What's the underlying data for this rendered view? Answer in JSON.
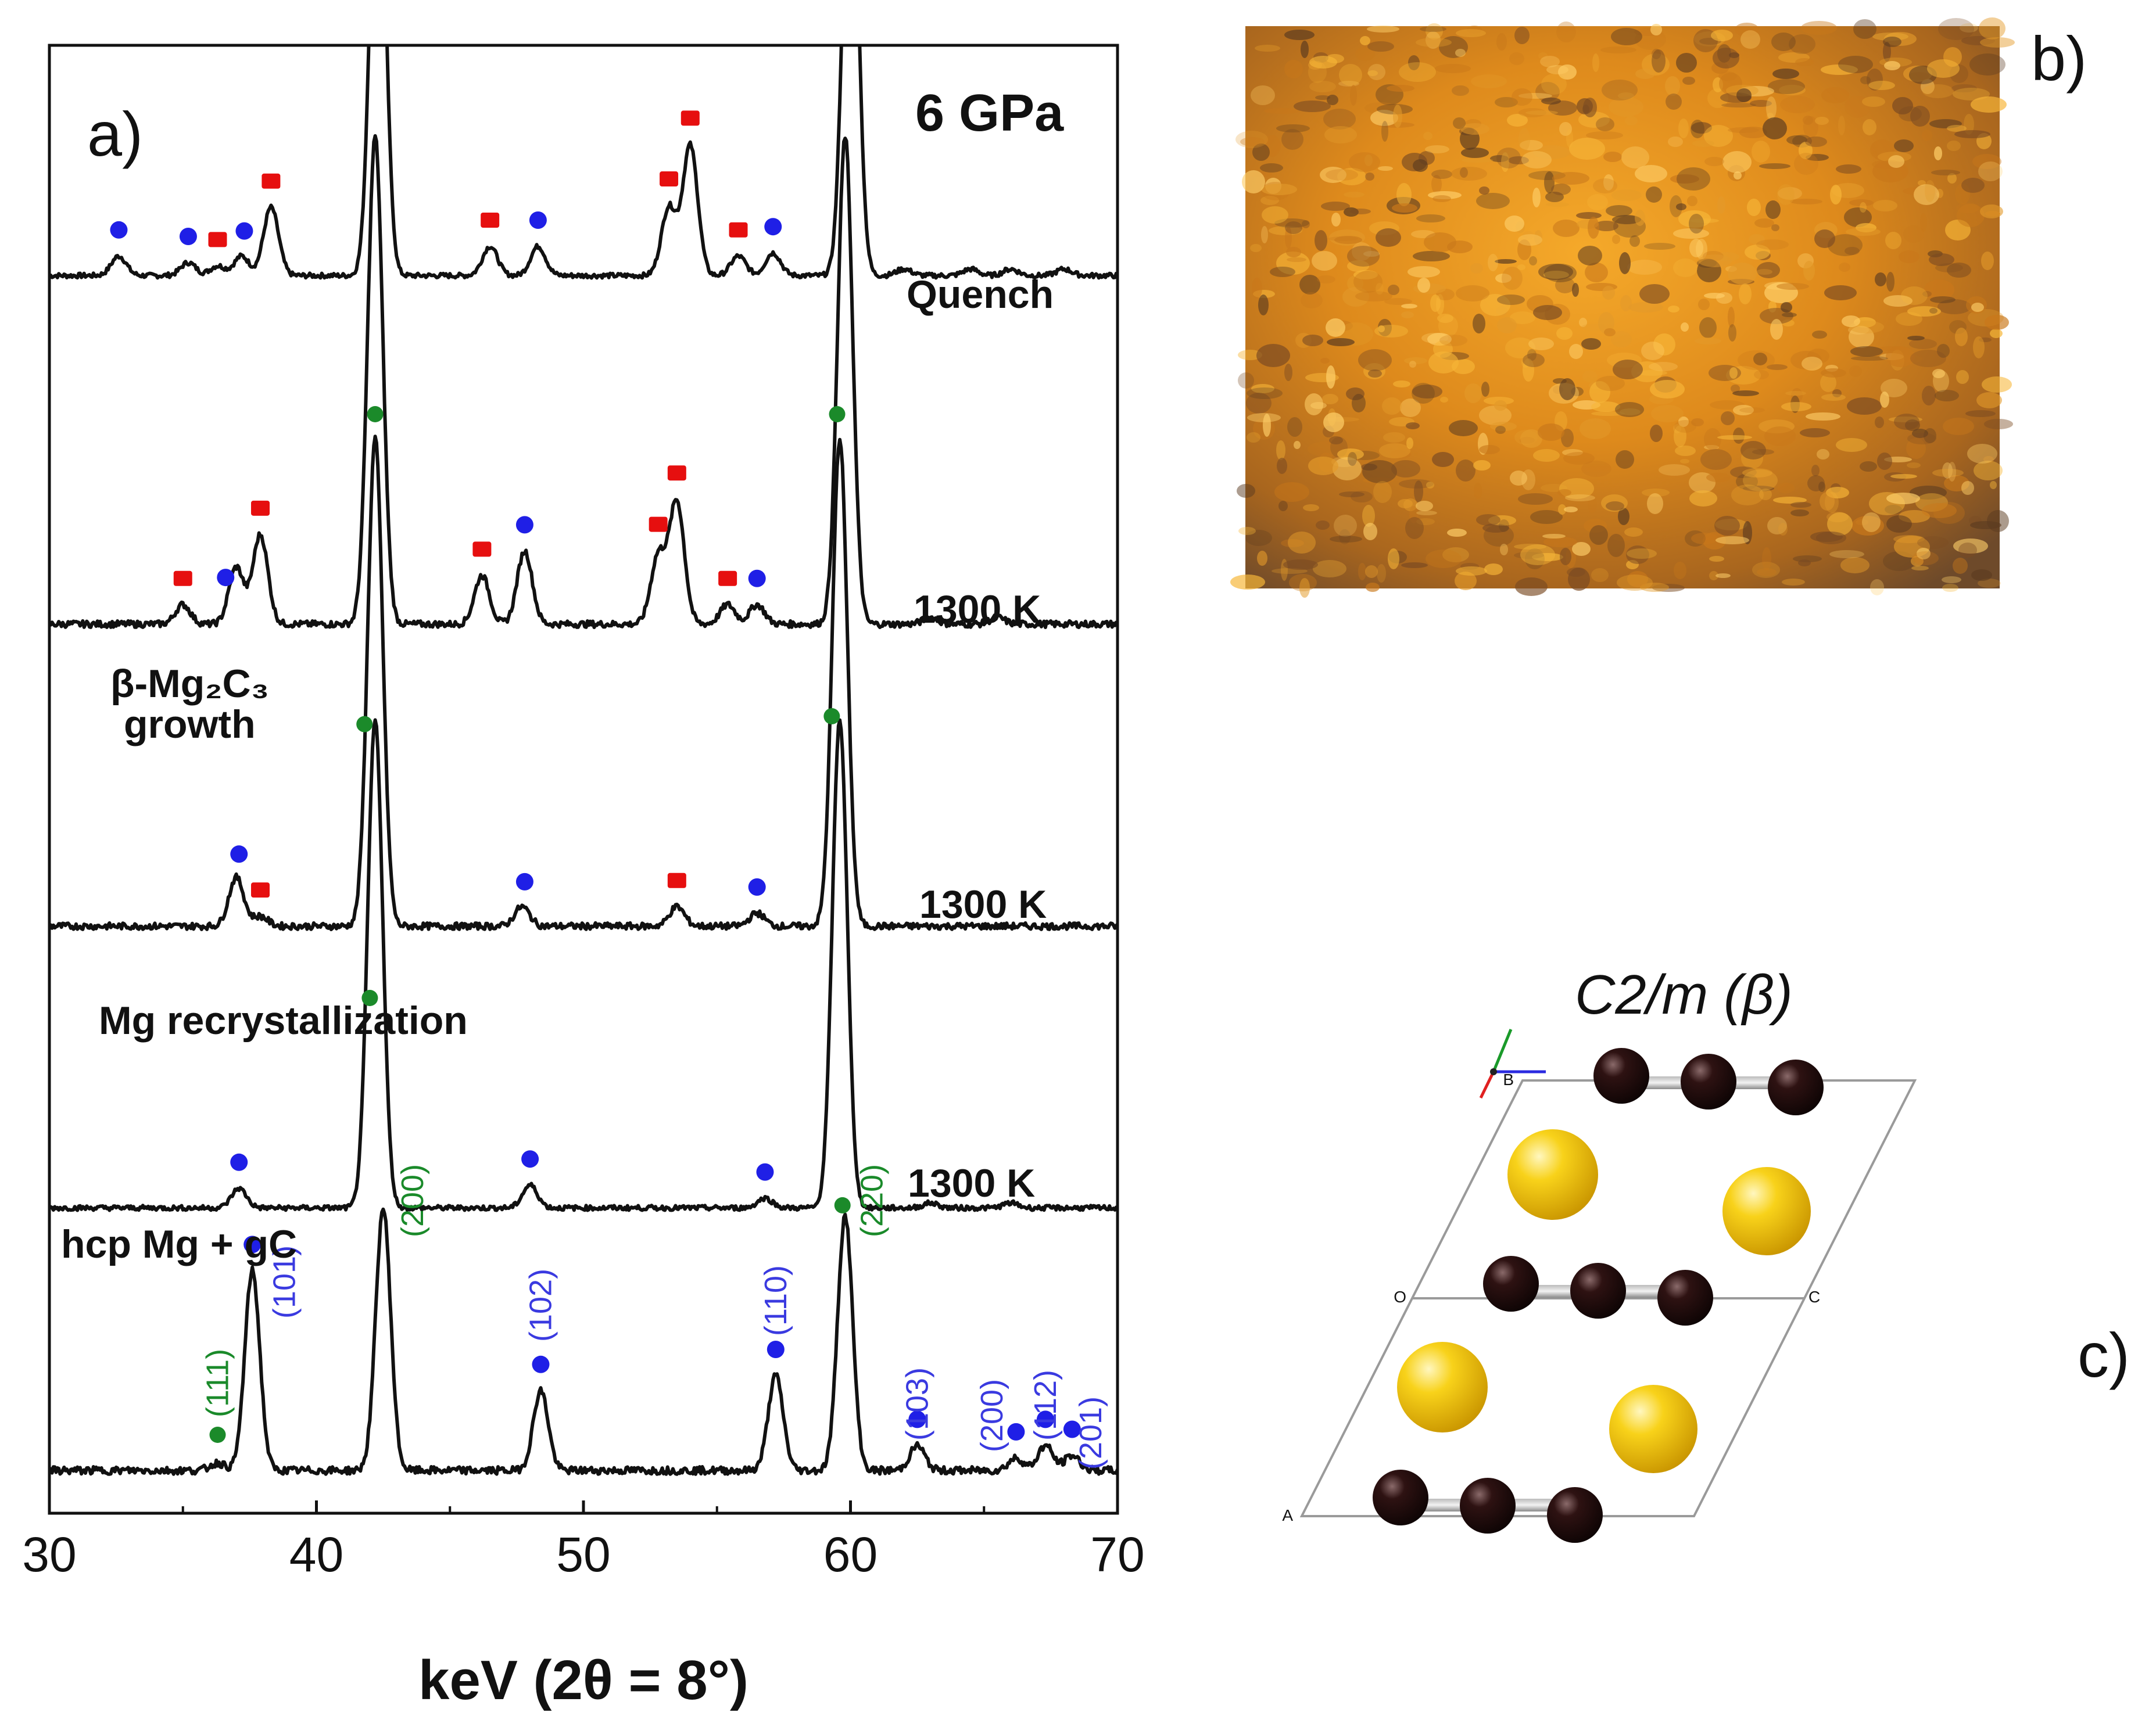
{
  "chart_data": {
    "type": "line",
    "panel_label": "a)",
    "annotation": "6 GPa",
    "xlabel": "keV (2θ = 8°)",
    "xlim": [
      30,
      70
    ],
    "xticks": [
      "30",
      "40",
      "50",
      "60",
      "70"
    ],
    "series": [
      {
        "name": "Quench",
        "offset": 4,
        "base": 0.02,
        "noise": 0.03,
        "peaks": [
          [
            32.6,
            0.12
          ],
          [
            35.2,
            0.08
          ],
          [
            36.3,
            0.06
          ],
          [
            37.2,
            0.12
          ],
          [
            38.3,
            0.42
          ],
          [
            42.3,
            3.0
          ],
          [
            46.5,
            0.18
          ],
          [
            48.3,
            0.18
          ],
          [
            53.2,
            0.42
          ],
          [
            54.0,
            0.8
          ],
          [
            55.8,
            0.12
          ],
          [
            57.1,
            0.14
          ],
          [
            60.0,
            3.0
          ],
          [
            62,
            0.04
          ],
          [
            64.5,
            0.04
          ],
          [
            66,
            0.04
          ],
          [
            68,
            0.04
          ]
        ],
        "blue_markers": [
          32.6,
          35.2,
          37.3,
          48.3,
          57.1
        ],
        "red_markers": [
          36.3,
          38.3,
          46.5,
          53.2,
          54.0,
          55.8
        ],
        "green_markers": []
      },
      {
        "name": "1300 K",
        "offset": 3,
        "base": 0.02,
        "noise": 0.04,
        "peaks": [
          [
            35.0,
            0.12
          ],
          [
            37.0,
            0.35
          ],
          [
            37.9,
            0.55
          ],
          [
            42.2,
            3.0
          ],
          [
            46.2,
            0.3
          ],
          [
            47.8,
            0.45
          ],
          [
            52.8,
            0.42
          ],
          [
            53.5,
            0.75
          ],
          [
            55.4,
            0.12
          ],
          [
            56.5,
            0.12
          ],
          [
            59.8,
            3.0
          ],
          [
            63,
            0.04
          ],
          [
            65.5,
            0.04
          ]
        ],
        "blue_markers": [
          36.6,
          47.8,
          56.5
        ],
        "red_markers": [
          35.0,
          37.9,
          46.2,
          52.8,
          53.5,
          55.4
        ],
        "green_markers": [
          42.2,
          59.5
        ]
      },
      {
        "name": "1300 K",
        "offset": 2,
        "base": 0.02,
        "noise": 0.04,
        "peaks": [
          [
            37.0,
            0.3
          ],
          [
            37.9,
            0.06
          ],
          [
            42.2,
            3.0
          ],
          [
            47.7,
            0.12
          ],
          [
            53.5,
            0.12
          ],
          [
            56.5,
            0.08
          ],
          [
            59.6,
            3.0
          ]
        ],
        "blue_markers": [
          37.1,
          47.8,
          56.5
        ],
        "red_markers": [
          37.9,
          53.5
        ],
        "green_markers": [
          41.8,
          59.3
        ]
      },
      {
        "name": "1300 K",
        "offset": 1,
        "base": 0.02,
        "noise": 0.03,
        "peaks": [
          [
            37.1,
            0.12
          ],
          [
            42.2,
            3.0
          ],
          [
            48.0,
            0.14
          ],
          [
            56.8,
            0.06
          ],
          [
            59.6,
            3.0
          ],
          [
            63,
            0.03
          ],
          [
            66,
            0.03
          ]
        ],
        "blue_markers": [
          37.1,
          48.0,
          56.8
        ],
        "red_markers": [],
        "green_markers": [
          42.0
        ]
      },
      {
        "name": "",
        "offset": 0,
        "base": 0.02,
        "noise": 0.03,
        "peaks": [
          [
            36.3,
            0.03
          ],
          [
            37.6,
            0.8
          ],
          [
            42.5,
            1.05
          ],
          [
            48.4,
            0.32
          ],
          [
            57.2,
            0.38
          ],
          [
            59.8,
            1.02
          ],
          [
            62.5,
            0.1
          ],
          [
            66.2,
            0.05
          ],
          [
            67.3,
            0.1
          ],
          [
            68.3,
            0.06
          ]
        ],
        "blue_markers": [
          37.6,
          48.4,
          57.2,
          62.5,
          66.2,
          67.3,
          68.3
        ],
        "red_markers": [],
        "green_markers": [
          36.3,
          59.7
        ]
      }
    ],
    "stage_labels": [
      "β-Mg₂C₃",
      "growth",
      "Mg recrystallization",
      "hcp Mg + gC"
    ],
    "hkl_labels": [
      {
        "text": "(111)",
        "x": 36.3,
        "color": "green"
      },
      {
        "text": "(101)",
        "x": 38.8,
        "color": "blue"
      },
      {
        "text": "(200)",
        "x": 43.6,
        "color": "green"
      },
      {
        "text": "(102)",
        "x": 48.4,
        "color": "blue"
      },
      {
        "text": "(110)",
        "x": 57.2,
        "color": "blue"
      },
      {
        "text": "(220)",
        "x": 60.8,
        "color": "green"
      },
      {
        "text": "(103)",
        "x": 62.5,
        "color": "blue"
      },
      {
        "text": "(200)",
        "x": 65.3,
        "color": "blue"
      },
      {
        "text": "(112)",
        "x": 67.3,
        "color": "blue"
      },
      {
        "text": "(201)",
        "x": 69.0,
        "color": "blue"
      }
    ],
    "colors": {
      "blue": "#1f1fe6",
      "red": "#e60f0f",
      "green": "#1b8a2a",
      "curve": "#111111"
    }
  },
  "photo_panel": {
    "label": "b)"
  },
  "structure_panel": {
    "label": "c)",
    "space_group": "C2/m (β)",
    "mg_color": "#f5c400",
    "c_color": "#2a0f0f"
  }
}
